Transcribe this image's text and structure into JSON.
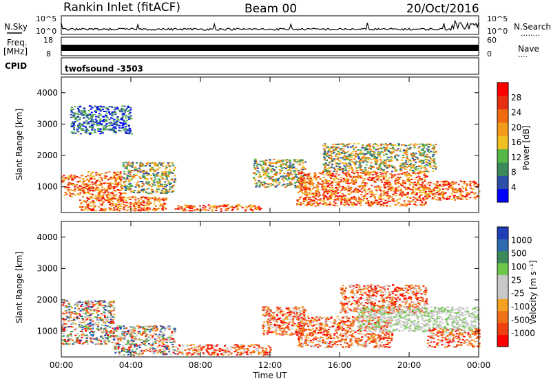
{
  "header": {
    "station": "Rankin Inlet (fitACF)",
    "beam": "Beam 00",
    "date": "20/Oct/2016"
  },
  "noise_panel": {
    "left_label": "N.Sky",
    "right_label": "N.Search",
    "left_ticks": [
      "10^5",
      "10^0"
    ],
    "right_ticks": [
      "10^5",
      "10^0"
    ],
    "legend_dots": "........"
  },
  "freq_panel": {
    "left_label_1": "Freq.",
    "left_label_2": "[MHz]",
    "left_ticks": [
      "18",
      "8"
    ],
    "right_label": "Nave",
    "right_ticks": [
      "60",
      "0"
    ],
    "legend_dots": "...."
  },
  "cpid_panel": {
    "label": "CPID",
    "value": "twofsound -3503"
  },
  "colors": {
    "power": [
      "#0000ff",
      "#2d4fa8",
      "#3a8a5a",
      "#57b84a",
      "#f0c020",
      "#f39a1a",
      "#f06a10",
      "#e83010",
      "#ff0000"
    ],
    "velocity": [
      "#ff0000",
      "#f04010",
      "#f07018",
      "#f4a020",
      "#c8c8c8",
      "#c8c8c8",
      "#6ec84a",
      "#3a8a5a",
      "#2d6ab0",
      "#1f3fb8"
    ]
  },
  "chart_data": [
    {
      "type": "heatmap",
      "title": "",
      "xlabel": "",
      "ylabel": "Slant Range [km]",
      "x_ticks": [
        "00:00",
        "04:00",
        "08:00",
        "12:00",
        "16:00",
        "20:00",
        "00:00"
      ],
      "xlim": [
        0,
        24
      ],
      "ylim": [
        180,
        4500
      ],
      "y_ticks": [
        1000,
        2000,
        3000,
        4000
      ],
      "colorbar": {
        "label": "Power [dB]",
        "ticks": [
          4,
          8,
          12,
          16,
          20,
          24,
          28
        ],
        "range": [
          0,
          30
        ]
      },
      "regions": [
        {
          "t": [
            0.0,
            1.5
          ],
          "r": [
            700,
            1400
          ],
          "level": "high"
        },
        {
          "t": [
            1.5,
            3.5
          ],
          "r": [
            600,
            1500
          ],
          "level": "high"
        },
        {
          "t": [
            3.5,
            6.5
          ],
          "r": [
            800,
            1800
          ],
          "level": "mid"
        },
        {
          "t": [
            1.0,
            6.0
          ],
          "r": [
            250,
            700
          ],
          "level": "high"
        },
        {
          "t": [
            6.5,
            11.5
          ],
          "r": [
            250,
            450
          ],
          "level": "high"
        },
        {
          "t": [
            11.0,
            14.0
          ],
          "r": [
            1000,
            1900
          ],
          "level": "mid"
        },
        {
          "t": [
            13.5,
            21.0
          ],
          "r": [
            400,
            1500
          ],
          "level": "high"
        },
        {
          "t": [
            15.0,
            21.5
          ],
          "r": [
            1500,
            2400
          ],
          "level": "mid"
        },
        {
          "t": [
            21.0,
            24.0
          ],
          "r": [
            600,
            1200
          ],
          "level": "high"
        },
        {
          "t": [
            0.5,
            4.0
          ],
          "r": [
            2700,
            3600
          ],
          "level": "low"
        }
      ]
    },
    {
      "type": "heatmap",
      "title": "",
      "xlabel": "Time UT",
      "ylabel": "Slant Range [km]",
      "x_ticks": [
        "00:00",
        "04:00",
        "08:00",
        "12:00",
        "16:00",
        "20:00",
        "00:00"
      ],
      "xlim": [
        0,
        24
      ],
      "ylim": [
        180,
        4500
      ],
      "y_ticks": [
        1000,
        2000,
        3000,
        4000
      ],
      "colorbar": {
        "label": "Velocity [m s⁻¹]",
        "ticks": [
          -1000,
          -500,
          -100,
          -25,
          25,
          100,
          500,
          1000
        ],
        "range": [
          -1500,
          1500
        ]
      },
      "regions": [
        {
          "t": [
            0.0,
            3.0
          ],
          "r": [
            600,
            2000
          ],
          "level": "mixed"
        },
        {
          "t": [
            3.0,
            6.5
          ],
          "r": [
            250,
            1200
          ],
          "level": "mixed"
        },
        {
          "t": [
            6.5,
            12.0
          ],
          "r": [
            250,
            600
          ],
          "level": "negative"
        },
        {
          "t": [
            11.5,
            14.0
          ],
          "r": [
            900,
            1800
          ],
          "level": "negative"
        },
        {
          "t": [
            13.5,
            19.0
          ],
          "r": [
            500,
            1500
          ],
          "level": "negative"
        },
        {
          "t": [
            16.0,
            21.0
          ],
          "r": [
            1600,
            2500
          ],
          "level": "negative"
        },
        {
          "t": [
            17.0,
            24.0
          ],
          "r": [
            1000,
            1800
          ],
          "level": "near-zero"
        },
        {
          "t": [
            21.0,
            24.0
          ],
          "r": [
            500,
            1100
          ],
          "level": "negative"
        }
      ]
    }
  ]
}
